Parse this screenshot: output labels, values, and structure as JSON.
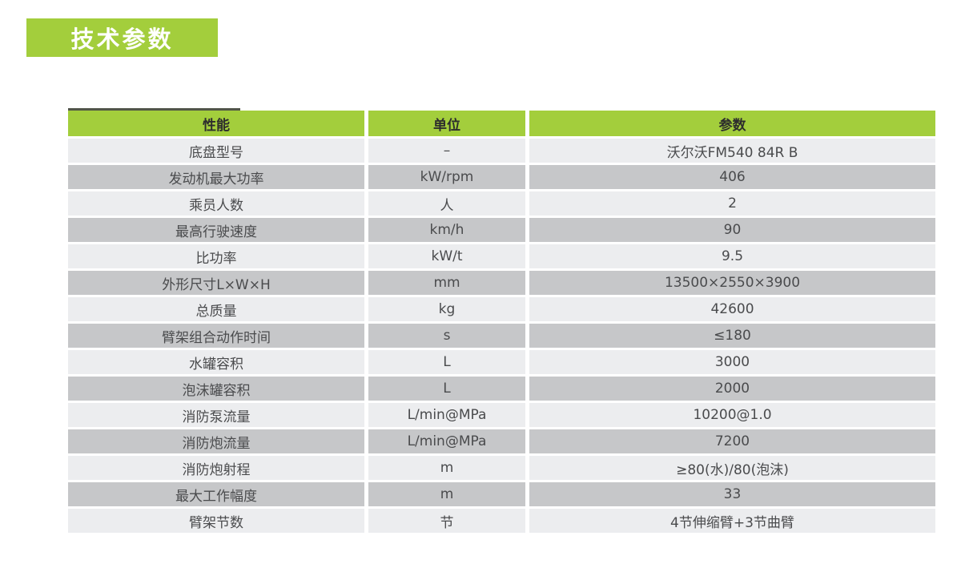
{
  "page": {
    "title": "技术参数"
  },
  "colors": {
    "brand_green": "#A3CE3C",
    "row_light": "#ECEDEF",
    "row_dark": "#C6C7C9",
    "header_text": "#2D2D2D",
    "cell_text": "#4A4B4D",
    "accent_line": "#515548"
  },
  "table": {
    "headers": [
      "性能",
      "单位",
      "参数"
    ],
    "rows": [
      {
        "name": "底盘型号",
        "unit": "–",
        "value": "沃尔沃FM540 84R B"
      },
      {
        "name": "发动机最大功率",
        "unit": "kW/rpm",
        "value": "406"
      },
      {
        "name": "乘员人数",
        "unit": "人",
        "value": "2"
      },
      {
        "name": "最高行驶速度",
        "unit": "km/h",
        "value": "90"
      },
      {
        "name": "比功率",
        "unit": "kW/t",
        "value": "9.5"
      },
      {
        "name": "外形尺寸L×W×H",
        "unit": "mm",
        "value": "13500×2550×3900"
      },
      {
        "name": "总质量",
        "unit": "kg",
        "value": "42600"
      },
      {
        "name": "臂架组合动作时间",
        "unit": "s",
        "value": "≤180"
      },
      {
        "name": "水罐容积",
        "unit": "L",
        "value": "3000"
      },
      {
        "name": "泡沫罐容积",
        "unit": "L",
        "value": "2000"
      },
      {
        "name": "消防泵流量",
        "unit": "L/min@MPa",
        "value": "10200@1.0"
      },
      {
        "name": "消防炮流量",
        "unit": "L/min@MPa",
        "value": "7200"
      },
      {
        "name": "消防炮射程",
        "unit": "m",
        "value": "≥80(水)/80(泡沫)"
      },
      {
        "name": "最大工作幅度",
        "unit": "m",
        "value": "33"
      },
      {
        "name": "臂架节数",
        "unit": "节",
        "value": "4节伸缩臂+3节曲臂"
      }
    ]
  }
}
